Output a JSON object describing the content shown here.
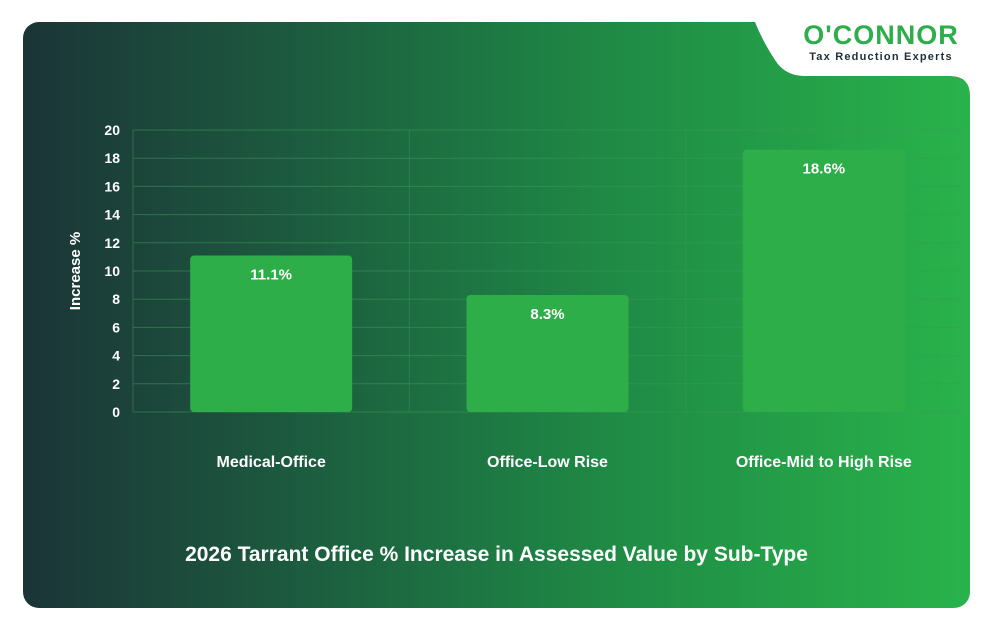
{
  "logo": {
    "name": "O'CONNOR",
    "tagline": "Tax Reduction Experts"
  },
  "colors": {
    "bar": "#2eae48",
    "bar_label": "#ffffff",
    "axis_text": "#ffffff",
    "grid": "#3a9a55",
    "brand_green": "#2eae4a"
  },
  "chart_data": {
    "type": "bar",
    "title": "2026 Tarrant Office % Increase in Assessed Value by Sub-Type",
    "xlabel": "",
    "ylabel": "Increase %",
    "categories": [
      "Medical-Office",
      "Office-Low Rise",
      "Office-Mid to High Rise"
    ],
    "values": [
      11.1,
      8.3,
      18.6
    ],
    "data_labels": [
      "11.1%",
      "8.3%",
      "18.6%"
    ],
    "ylim": [
      0,
      20
    ],
    "yticks": [
      0,
      2,
      4,
      6,
      8,
      10,
      12,
      14,
      16,
      18,
      20
    ],
    "grid": true,
    "legend": "none"
  }
}
